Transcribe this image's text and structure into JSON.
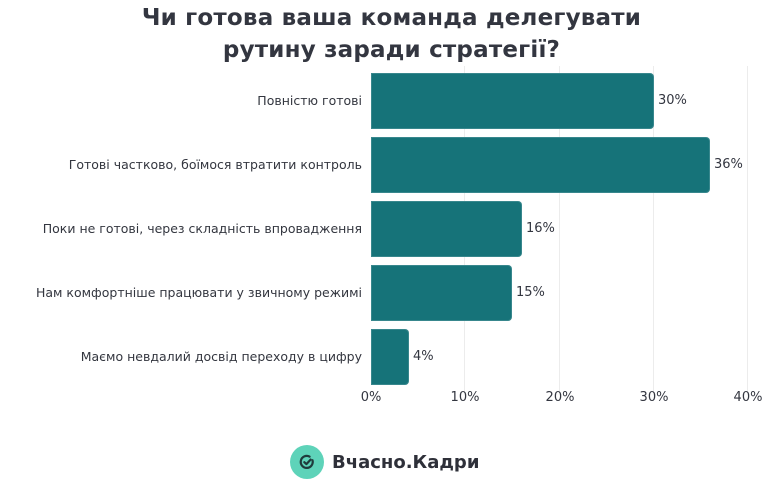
{
  "chart_data": {
    "type": "bar",
    "orientation": "horizontal",
    "title": "Чи готова ваша команда делегувати рутину заради стратегії?",
    "title_lines": [
      "Чи готова ваша команда делегувати",
      "рутину заради стратегії?"
    ],
    "categories": [
      "Повністю готові",
      "Готові частково, боїмося втратити контроль",
      "Поки не готові, через складність впровадження",
      "Нам комфортніше працювати у звичному режимі",
      "Маємо невдалий досвід переходу в цифру"
    ],
    "values": [
      30,
      36,
      16,
      15,
      4
    ],
    "value_labels": [
      "30%",
      "36%",
      "16%",
      "15%",
      "4%"
    ],
    "xlabel": "",
    "ylabel": "",
    "xlim": [
      0,
      40
    ],
    "x_ticks": [
      "0%",
      "10%",
      "20%",
      "30%",
      "40%"
    ],
    "grid": "vertical",
    "legend": null,
    "bar_color": "#167379"
  },
  "branding": {
    "logo_text": "Вчасно.Кадри",
    "logo_icon": "clock-check-icon",
    "logo_badge_color": "#5ed3b9",
    "logo_icon_color": "#1f3b3c"
  }
}
